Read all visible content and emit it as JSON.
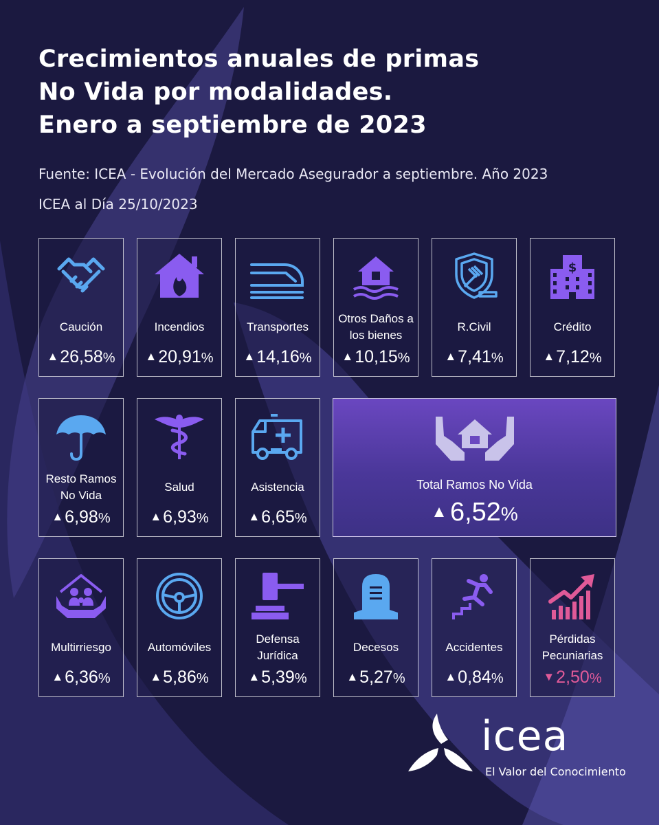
{
  "header": {
    "title_lines": [
      "Crecimientos anuales de primas",
      "No Vida por modalidades.",
      "Enero a septiembre de 2023"
    ],
    "source": "Fuente: ICEA - Evolución del Mercado Asegurador a septiembre. Año 2023",
    "published": "ICEA al Día 25/10/2023"
  },
  "colors": {
    "background": "#1b1940",
    "icon_blue": "#5aa8f0",
    "icon_purple": "#8a5cf0",
    "negative": "#e05a98"
  },
  "cards": [
    {
      "label": "Caución",
      "value": "26,58",
      "unit": "%",
      "trend": "up",
      "icon": "handshake-icon"
    },
    {
      "label": "Incendios",
      "value": "20,91",
      "unit": "%",
      "trend": "up",
      "icon": "house-fire-icon"
    },
    {
      "label": "Transportes",
      "value": "14,16",
      "unit": "%",
      "trend": "up",
      "icon": "train-icon"
    },
    {
      "label": "Otros Daños a los bienes",
      "value": "10,15",
      "unit": "%",
      "trend": "up",
      "icon": "house-flood-icon"
    },
    {
      "label": "R.Civil",
      "value": "7,41",
      "unit": "%",
      "trend": "up",
      "icon": "shield-gavel-icon"
    },
    {
      "label": "Crédito",
      "value": "7,12",
      "unit": "%",
      "trend": "up",
      "icon": "bank-building-icon"
    },
    {
      "label": "Resto Ramos No Vida",
      "value": "6,98",
      "unit": "%",
      "trend": "up",
      "icon": "umbrella-icon"
    },
    {
      "label": "Salud",
      "value": "6,93",
      "unit": "%",
      "trend": "up",
      "icon": "caduceus-icon"
    },
    {
      "label": "Asistencia",
      "value": "6,65",
      "unit": "%",
      "trend": "up",
      "icon": "ambulance-icon"
    },
    {
      "label": "Multirriesgo",
      "value": "6,36",
      "unit": "%",
      "trend": "up",
      "icon": "family-house-icon"
    },
    {
      "label": "Automóviles",
      "value": "5,86",
      "unit": "%",
      "trend": "up",
      "icon": "steering-wheel-icon"
    },
    {
      "label": "Defensa Jurídica",
      "value": "5,39",
      "unit": "%",
      "trend": "up",
      "icon": "gavel-icon"
    },
    {
      "label": "Decesos",
      "value": "5,27",
      "unit": "%",
      "trend": "up",
      "icon": "tombstone-icon"
    },
    {
      "label": "Accidentes",
      "value": "0,84",
      "unit": "%",
      "trend": "up",
      "icon": "falling-person-icon"
    },
    {
      "label": "Pérdidas Pecuniarias",
      "value": "2,50",
      "unit": "%",
      "trend": "down",
      "icon": "growth-chart-icon"
    }
  ],
  "total": {
    "label": "Total Ramos No Vida",
    "value": "6,52",
    "unit": "%",
    "trend": "up",
    "icon": "house-in-hands-icon"
  },
  "trend_symbols": {
    "up": "▲",
    "down": "▼"
  },
  "brand": {
    "name": "icea",
    "tagline": "El Valor del Conocimiento"
  }
}
